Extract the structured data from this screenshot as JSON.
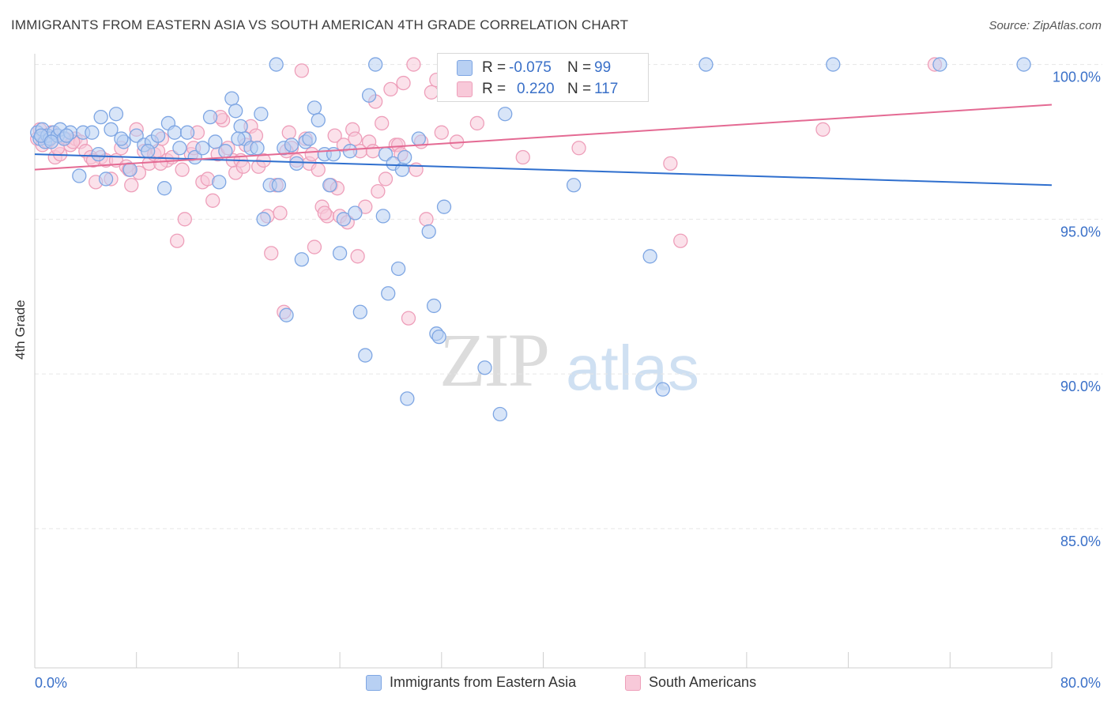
{
  "header": {
    "title": "IMMIGRANTS FROM EASTERN ASIA VS SOUTH AMERICAN 4TH GRADE CORRELATION CHART",
    "source": "Source: ZipAtlas.com"
  },
  "watermark": {
    "zip": "ZIP",
    "atlas": "atlas"
  },
  "stats": {
    "r_label": "R =",
    "n_label": "N =",
    "rows": [
      {
        "r": "-0.075",
        "n": "99"
      },
      {
        "r": "0.220",
        "n": "117"
      }
    ]
  },
  "legend": [
    {
      "label": "Immigrants from Eastern Asia",
      "color": "#6f9fe0"
    },
    {
      "label": "South Americans",
      "color": "#f09ab8"
    }
  ],
  "colors": {
    "blue_fill": "#b8d0f3",
    "blue_edge": "#7ea6e3",
    "blue_line": "#2f6fce",
    "pink_fill": "#f8c9d9",
    "pink_edge": "#ee9fba",
    "pink_line": "#e46a93",
    "grid": "#e6e6e6",
    "tick_label": "#3a70c8"
  },
  "chart_data": {
    "type": "scatter",
    "title": "IMMIGRANTS FROM EASTERN ASIA VS SOUTH AMERICAN 4TH GRADE CORRELATION CHART",
    "xlabel": "",
    "ylabel": "4th Grade",
    "xlim": [
      0,
      80
    ],
    "ylim": [
      80.5,
      100.5
    ],
    "x_tick_labels": [
      "0.0%",
      "80.0%"
    ],
    "y_ticks": [
      85,
      90,
      95,
      100
    ],
    "y_tick_labels": [
      "85.0%",
      "90.0%",
      "95.0%",
      "100.0%"
    ],
    "grid": "horizontal dashed",
    "legend_position": "bottom",
    "series": [
      {
        "name": "Immigrants from Eastern Asia",
        "r": -0.075,
        "n": 99,
        "trend": [
          [
            0,
            97.1
          ],
          [
            80,
            96.1
          ]
        ],
        "points": [
          [
            0.2,
            97.8
          ],
          [
            0.4,
            97.6
          ],
          [
            0.6,
            97.9
          ],
          [
            0.8,
            97.5
          ],
          [
            1.0,
            97.7
          ],
          [
            1.2,
            97.6
          ],
          [
            1.5,
            97.8
          ],
          [
            1.8,
            97.7
          ],
          [
            2.0,
            97.9
          ],
          [
            2.3,
            97.6
          ],
          [
            2.8,
            97.8
          ],
          [
            3.5,
            96.4
          ],
          [
            3.8,
            97.8
          ],
          [
            4.5,
            97.8
          ],
          [
            5.0,
            97.1
          ],
          [
            5.2,
            98.3
          ],
          [
            5.6,
            96.3
          ],
          [
            6.0,
            97.9
          ],
          [
            6.4,
            98.4
          ],
          [
            7.0,
            97.5
          ],
          [
            7.5,
            96.6
          ],
          [
            8.0,
            97.7
          ],
          [
            8.6,
            97.4
          ],
          [
            9.2,
            97.5
          ],
          [
            9.7,
            97.7
          ],
          [
            10.2,
            96.0
          ],
          [
            10.5,
            98.1
          ],
          [
            11.0,
            97.8
          ],
          [
            11.4,
            97.3
          ],
          [
            12.0,
            97.8
          ],
          [
            12.6,
            97.0
          ],
          [
            13.2,
            97.3
          ],
          [
            13.8,
            98.3
          ],
          [
            14.2,
            97.5
          ],
          [
            14.5,
            96.2
          ],
          [
            15.0,
            97.2
          ],
          [
            15.5,
            98.9
          ],
          [
            15.8,
            98.5
          ],
          [
            16.2,
            98.0
          ],
          [
            16.5,
            97.6
          ],
          [
            17.0,
            97.3
          ],
          [
            17.5,
            97.3
          ],
          [
            17.8,
            98.4
          ],
          [
            18.0,
            95.0
          ],
          [
            18.5,
            96.1
          ],
          [
            19.0,
            100.0
          ],
          [
            19.2,
            96.1
          ],
          [
            19.6,
            97.3
          ],
          [
            19.8,
            91.9
          ],
          [
            20.2,
            97.4
          ],
          [
            20.6,
            96.8
          ],
          [
            21.0,
            93.7
          ],
          [
            21.3,
            97.5
          ],
          [
            21.6,
            97.6
          ],
          [
            22.0,
            98.6
          ],
          [
            22.3,
            98.2
          ],
          [
            22.8,
            97.1
          ],
          [
            23.2,
            96.1
          ],
          [
            23.5,
            97.1
          ],
          [
            24.0,
            93.9
          ],
          [
            24.3,
            95.0
          ],
          [
            24.8,
            97.2
          ],
          [
            25.2,
            95.2
          ],
          [
            25.6,
            92.0
          ],
          [
            26.0,
            90.6
          ],
          [
            26.3,
            99.0
          ],
          [
            26.8,
            100.0
          ],
          [
            27.4,
            95.1
          ],
          [
            27.6,
            97.1
          ],
          [
            27.8,
            92.6
          ],
          [
            28.2,
            96.8
          ],
          [
            28.6,
            93.4
          ],
          [
            28.9,
            96.6
          ],
          [
            29.1,
            97.0
          ],
          [
            29.3,
            89.2
          ],
          [
            30.2,
            97.6
          ],
          [
            31.0,
            94.6
          ],
          [
            31.4,
            92.2
          ],
          [
            31.6,
            91.3
          ],
          [
            31.8,
            91.2
          ],
          [
            32.2,
            95.4
          ],
          [
            35.4,
            90.2
          ],
          [
            36.0,
            100.0
          ],
          [
            36.6,
            88.7
          ],
          [
            37.0,
            98.4
          ],
          [
            40.0,
            100.0
          ],
          [
            42.4,
            96.1
          ],
          [
            48.4,
            93.8
          ],
          [
            49.4,
            89.5
          ],
          [
            52.8,
            100.0
          ],
          [
            62.8,
            100.0
          ],
          [
            71.2,
            100.0
          ],
          [
            77.8,
            100.0
          ],
          [
            0.5,
            97.7
          ],
          [
            1.3,
            97.5
          ],
          [
            2.5,
            97.7
          ],
          [
            6.8,
            97.6
          ],
          [
            8.9,
            97.2
          ],
          [
            16.0,
            97.6
          ]
        ]
      },
      {
        "name": "South Americans",
        "r": 0.22,
        "n": 117,
        "trend": [
          [
            0,
            96.6
          ],
          [
            80,
            98.7
          ]
        ],
        "points": [
          [
            0.2,
            97.6
          ],
          [
            0.4,
            97.9
          ],
          [
            0.6,
            97.4
          ],
          [
            0.8,
            97.7
          ],
          [
            1.0,
            97.5
          ],
          [
            1.3,
            97.8
          ],
          [
            1.6,
            97.0
          ],
          [
            2.0,
            97.1
          ],
          [
            2.4,
            97.6
          ],
          [
            2.8,
            97.4
          ],
          [
            3.2,
            97.6
          ],
          [
            3.6,
            97.5
          ],
          [
            4.0,
            97.2
          ],
          [
            4.4,
            97.0
          ],
          [
            4.8,
            96.2
          ],
          [
            5.2,
            97.0
          ],
          [
            5.6,
            96.9
          ],
          [
            6.0,
            96.3
          ],
          [
            6.4,
            96.9
          ],
          [
            6.8,
            97.3
          ],
          [
            7.2,
            96.7
          ],
          [
            7.6,
            96.1
          ],
          [
            8.0,
            97.9
          ],
          [
            8.2,
            96.5
          ],
          [
            8.6,
            97.2
          ],
          [
            9.0,
            96.8
          ],
          [
            9.4,
            97.1
          ],
          [
            9.7,
            97.2
          ],
          [
            10.0,
            97.6
          ],
          [
            10.4,
            96.9
          ],
          [
            10.8,
            97.0
          ],
          [
            11.2,
            94.3
          ],
          [
            11.6,
            96.6
          ],
          [
            11.8,
            95.0
          ],
          [
            12.3,
            97.1
          ],
          [
            12.8,
            97.8
          ],
          [
            13.2,
            96.2
          ],
          [
            13.6,
            96.3
          ],
          [
            14.0,
            95.6
          ],
          [
            14.4,
            97.1
          ],
          [
            14.8,
            98.2
          ],
          [
            15.2,
            97.3
          ],
          [
            15.6,
            96.9
          ],
          [
            15.8,
            96.5
          ],
          [
            16.2,
            96.9
          ],
          [
            16.6,
            97.4
          ],
          [
            17.0,
            98.0
          ],
          [
            17.4,
            97.7
          ],
          [
            17.6,
            96.7
          ],
          [
            18.0,
            96.9
          ],
          [
            18.3,
            95.1
          ],
          [
            18.6,
            93.9
          ],
          [
            19.0,
            96.1
          ],
          [
            19.3,
            95.2
          ],
          [
            19.6,
            92.0
          ],
          [
            20.0,
            97.8
          ],
          [
            20.2,
            97.3
          ],
          [
            20.6,
            96.9
          ],
          [
            21.0,
            99.8
          ],
          [
            21.3,
            97.6
          ],
          [
            21.6,
            96.8
          ],
          [
            22.0,
            94.1
          ],
          [
            22.3,
            96.6
          ],
          [
            22.6,
            95.4
          ],
          [
            23.0,
            95.1
          ],
          [
            23.3,
            96.1
          ],
          [
            23.6,
            97.7
          ],
          [
            24.0,
            95.1
          ],
          [
            24.3,
            97.4
          ],
          [
            24.6,
            94.9
          ],
          [
            25.0,
            97.9
          ],
          [
            25.4,
            93.8
          ],
          [
            25.6,
            97.2
          ],
          [
            26.0,
            95.4
          ],
          [
            26.3,
            97.5
          ],
          [
            26.6,
            97.2
          ],
          [
            27.0,
            95.9
          ],
          [
            27.3,
            98.1
          ],
          [
            27.6,
            96.3
          ],
          [
            28.0,
            99.2
          ],
          [
            28.4,
            97.4
          ],
          [
            28.6,
            97.4
          ],
          [
            29.0,
            99.4
          ],
          [
            29.4,
            91.8
          ],
          [
            29.8,
            100.0
          ],
          [
            30.4,
            97.5
          ],
          [
            30.8,
            95.0
          ],
          [
            31.2,
            99.1
          ],
          [
            31.6,
            99.5
          ],
          [
            32.0,
            97.8
          ],
          [
            32.4,
            100.0
          ],
          [
            33.2,
            97.5
          ],
          [
            34.0,
            99.9
          ],
          [
            34.8,
            98.1
          ],
          [
            38.4,
            97.0
          ],
          [
            42.8,
            97.3
          ],
          [
            50.0,
            96.8
          ],
          [
            50.8,
            94.3
          ],
          [
            62.0,
            97.9
          ],
          [
            70.8,
            100.0
          ],
          [
            1.8,
            97.3
          ],
          [
            3.0,
            97.5
          ],
          [
            4.6,
            96.9
          ],
          [
            7.4,
            96.6
          ],
          [
            9.9,
            96.8
          ],
          [
            12.5,
            97.3
          ],
          [
            14.6,
            98.3
          ],
          [
            16.4,
            96.7
          ],
          [
            19.8,
            97.2
          ],
          [
            21.8,
            97.1
          ],
          [
            23.8,
            96.0
          ],
          [
            25.2,
            97.6
          ],
          [
            26.8,
            98.8
          ],
          [
            28.8,
            97.1
          ],
          [
            30.0,
            96.6
          ],
          [
            22.8,
            95.2
          ]
        ]
      }
    ]
  }
}
